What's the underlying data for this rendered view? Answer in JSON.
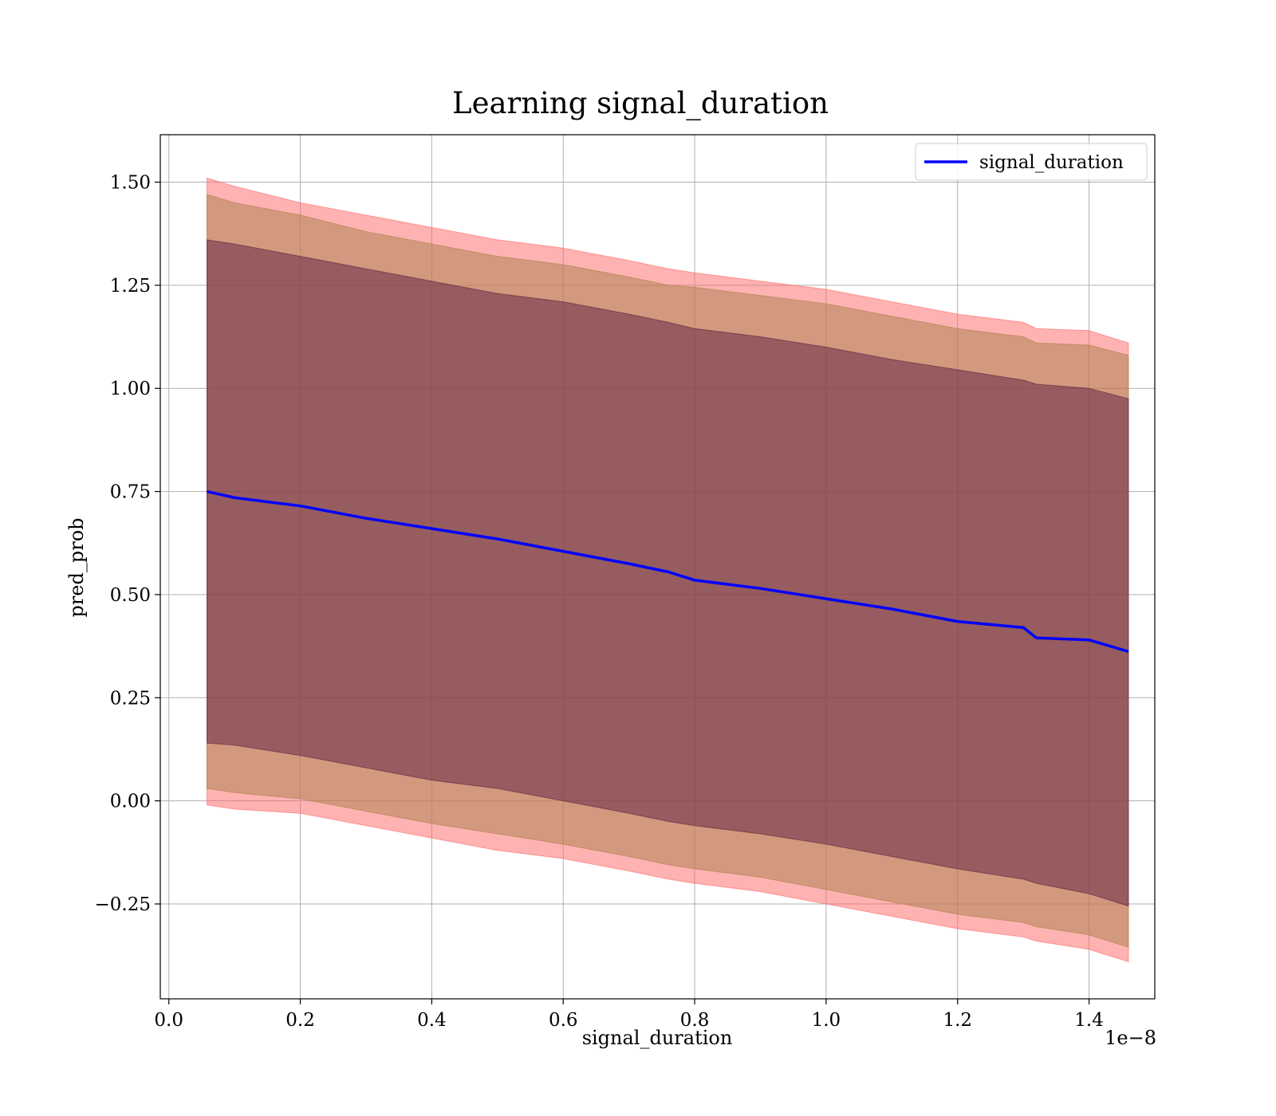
{
  "chart_data": {
    "type": "line",
    "title": "Learning signal_duration",
    "xlabel": "signal_duration",
    "ylabel": "pred_prob",
    "x_offset_label": "1e−8",
    "xlim": [
      -0.013,
      1.5
    ],
    "ylim": [
      -0.48,
      1.615
    ],
    "grid": true,
    "legend_position": "top-right",
    "x_ticks": [
      {
        "value": 0.0,
        "label": "0.0"
      },
      {
        "value": 0.2,
        "label": "0.2"
      },
      {
        "value": 0.4,
        "label": "0.4"
      },
      {
        "value": 0.6,
        "label": "0.6"
      },
      {
        "value": 0.8,
        "label": "0.8"
      },
      {
        "value": 1.0,
        "label": "1.0"
      },
      {
        "value": 1.2,
        "label": "1.2"
      },
      {
        "value": 1.4,
        "label": "1.4"
      }
    ],
    "y_ticks": [
      {
        "value": -0.25,
        "label": "−0.25"
      },
      {
        "value": 0.0,
        "label": "0.00"
      },
      {
        "value": 0.25,
        "label": "0.25"
      },
      {
        "value": 0.5,
        "label": "0.50"
      },
      {
        "value": 0.75,
        "label": "0.75"
      },
      {
        "value": 1.0,
        "label": "1.00"
      },
      {
        "value": 1.25,
        "label": "1.25"
      },
      {
        "value": 1.5,
        "label": "1.50"
      }
    ],
    "x": [
      0.058,
      0.1,
      0.2,
      0.3,
      0.4,
      0.5,
      0.6,
      0.7,
      0.76,
      0.8,
      0.9,
      1.0,
      1.1,
      1.2,
      1.3,
      1.32,
      1.4,
      1.46
    ],
    "series": [
      {
        "name": "signal_duration",
        "color": "#0000ff",
        "values": [
          0.75,
          0.735,
          0.715,
          0.685,
          0.66,
          0.635,
          0.605,
          0.575,
          0.555,
          0.535,
          0.515,
          0.49,
          0.465,
          0.435,
          0.42,
          0.395,
          0.39,
          0.362
        ]
      }
    ],
    "bands": [
      {
        "color": "#ff6666",
        "opacity": 0.5,
        "upper": [
          1.51,
          1.49,
          1.45,
          1.42,
          1.39,
          1.36,
          1.34,
          1.31,
          1.29,
          1.28,
          1.26,
          1.24,
          1.21,
          1.18,
          1.16,
          1.145,
          1.14,
          1.11
        ],
        "lower": [
          -0.01,
          -0.02,
          -0.03,
          -0.06,
          -0.09,
          -0.12,
          -0.14,
          -0.17,
          -0.19,
          -0.2,
          -0.22,
          -0.25,
          -0.28,
          -0.31,
          -0.33,
          -0.34,
          -0.36,
          -0.39
        ]
      },
      {
        "color": "#a8804a",
        "opacity": 0.5,
        "upper": [
          1.47,
          1.45,
          1.42,
          1.38,
          1.35,
          1.32,
          1.3,
          1.27,
          1.25,
          1.245,
          1.225,
          1.205,
          1.175,
          1.145,
          1.125,
          1.11,
          1.105,
          1.08
        ],
        "lower": [
          0.03,
          0.02,
          0.005,
          -0.025,
          -0.055,
          -0.08,
          -0.105,
          -0.135,
          -0.155,
          -0.165,
          -0.185,
          -0.215,
          -0.245,
          -0.275,
          -0.295,
          -0.305,
          -0.325,
          -0.355
        ]
      },
      {
        "color": "#5a2040",
        "opacity": 0.5,
        "upper": [
          1.36,
          1.35,
          1.32,
          1.29,
          1.26,
          1.23,
          1.21,
          1.18,
          1.16,
          1.145,
          1.125,
          1.1,
          1.07,
          1.045,
          1.02,
          1.01,
          1.0,
          0.975
        ],
        "lower": [
          0.14,
          0.135,
          0.11,
          0.08,
          0.05,
          0.03,
          0.0,
          -0.03,
          -0.05,
          -0.06,
          -0.08,
          -0.105,
          -0.135,
          -0.165,
          -0.19,
          -0.2,
          -0.225,
          -0.255
        ]
      }
    ]
  }
}
